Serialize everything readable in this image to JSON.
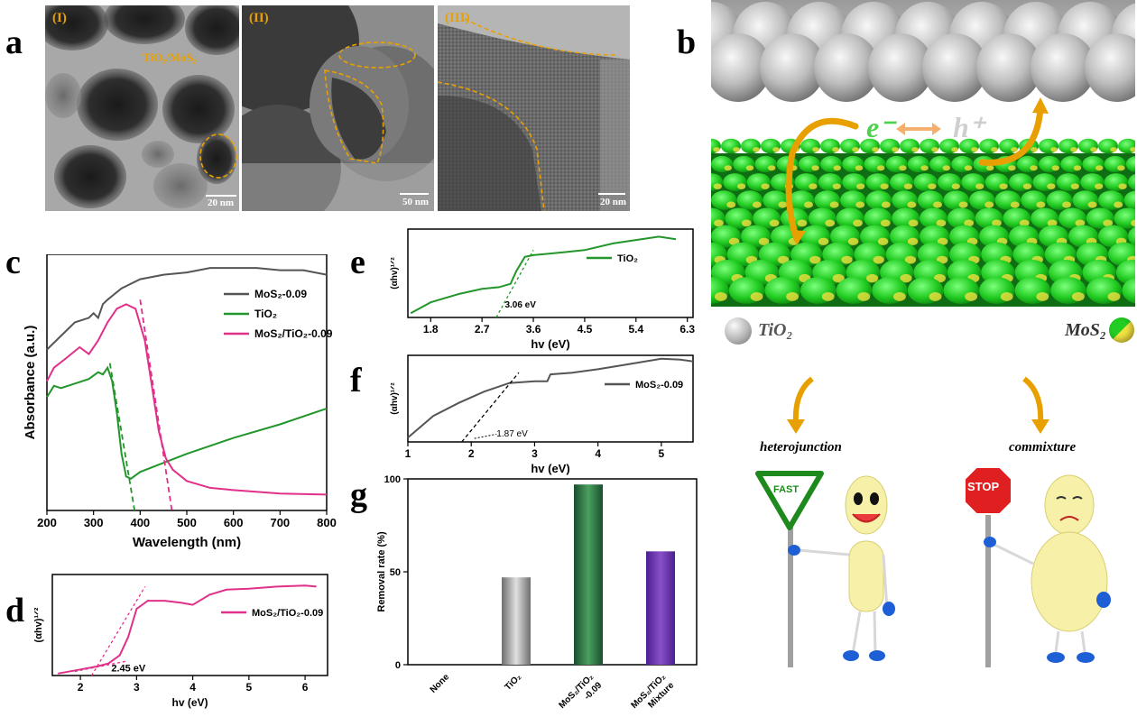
{
  "panel_letters": {
    "a": "a",
    "b": "b",
    "c": "c",
    "d": "d",
    "e": "e",
    "f": "f",
    "g": "g"
  },
  "tem_images": [
    {
      "label": "(I)",
      "annotation": "TiO₂/MoS₂",
      "scale": "20 nm"
    },
    {
      "label": "(II)",
      "scale": "50 nm"
    },
    {
      "label": "(III)",
      "scale": "20 nm"
    }
  ],
  "schematic": {
    "electron": "e⁻",
    "hole": "h⁺",
    "tio2_label": "TiO₂",
    "mos2_label": "MoS₂",
    "heterojunction": "heterojunction",
    "commixture": "commixture",
    "fast_sign": "FAST",
    "stop_sign": "STOP",
    "colors": {
      "tio2": "#b8b8b8",
      "mos2_green": "#22cc22",
      "mos2_yellow": "#f0e040",
      "arrow": "#e8a000"
    }
  },
  "chart_data": [
    {
      "id": "c",
      "type": "line",
      "xlabel": "Wavelength (nm)",
      "ylabel": "Absorbance (a.u.)",
      "xlim": [
        200,
        800
      ],
      "xticks": [
        "200",
        "300",
        "400",
        "500",
        "600",
        "700",
        "800"
      ],
      "series": [
        {
          "name": "MoS₂-0.09",
          "color": "#555555",
          "x": [
            200,
            230,
            260,
            290,
            300,
            310,
            320,
            330,
            360,
            400,
            450,
            500,
            550,
            600,
            650,
            700,
            750,
            800
          ],
          "y": [
            0.66,
            0.72,
            0.78,
            0.8,
            0.82,
            0.8,
            0.86,
            0.88,
            0.93,
            0.97,
            0.99,
            1.0,
            1.02,
            1.02,
            1.02,
            1.01,
            1.01,
            0.99
          ]
        },
        {
          "name": "TiO₂",
          "color": "#22962a",
          "x": [
            200,
            215,
            230,
            260,
            290,
            310,
            320,
            330,
            340,
            350,
            360,
            370,
            380,
            400,
            450,
            500,
            600,
            700,
            800
          ],
          "y": [
            0.45,
            0.5,
            0.49,
            0.51,
            0.53,
            0.56,
            0.55,
            0.58,
            0.52,
            0.38,
            0.2,
            0.1,
            0.09,
            0.12,
            0.16,
            0.2,
            0.27,
            0.33,
            0.4
          ]
        },
        {
          "name": "MoS₂/TiO₂-0.09",
          "color": "#e0308a",
          "x": [
            200,
            215,
            240,
            270,
            290,
            310,
            330,
            350,
            370,
            390,
            410,
            425,
            440,
            455,
            470,
            500,
            550,
            600,
            700,
            800
          ],
          "y": [
            0.52,
            0.58,
            0.62,
            0.67,
            0.64,
            0.7,
            0.78,
            0.84,
            0.86,
            0.84,
            0.7,
            0.5,
            0.3,
            0.18,
            0.13,
            0.08,
            0.05,
            0.04,
            0.025,
            0.02
          ]
        }
      ]
    },
    {
      "id": "d",
      "type": "line",
      "xlabel": "hv (eV)",
      "ylabel": "(αhv)¹ᐟ²",
      "xlim": [
        1.5,
        6.4
      ],
      "xticks": [
        "2",
        "3",
        "4",
        "5",
        "6"
      ],
      "annotation": "2.45 eV",
      "series": [
        {
          "name": "MoS₂/TiO₂-0.09",
          "color": "#e0308a",
          "x": [
            1.6,
            2.0,
            2.3,
            2.5,
            2.7,
            2.85,
            3.0,
            3.2,
            3.5,
            3.8,
            4.0,
            4.3,
            4.6,
            5.0,
            5.5,
            6.0,
            6.2
          ],
          "y": [
            0.02,
            0.06,
            0.09,
            0.12,
            0.2,
            0.38,
            0.66,
            0.74,
            0.74,
            0.72,
            0.7,
            0.8,
            0.85,
            0.86,
            0.88,
            0.89,
            0.88
          ]
        }
      ]
    },
    {
      "id": "e",
      "type": "line",
      "xlabel": "hv (eV)",
      "ylabel": "(αhv)¹ᐟ²",
      "xlim": [
        1.4,
        6.4
      ],
      "xticks": [
        "1.8",
        "2.7",
        "3.6",
        "4.5",
        "5.4",
        "6.3"
      ],
      "annotation": "3.06 eV",
      "series": [
        {
          "name": "TiO₂",
          "color": "#22962a",
          "x": [
            1.45,
            1.8,
            2.3,
            2.7,
            3.0,
            3.2,
            3.3,
            3.45,
            3.6,
            3.9,
            4.2,
            4.5,
            5.0,
            5.4,
            5.8,
            6.1
          ],
          "y": [
            0.05,
            0.18,
            0.28,
            0.34,
            0.36,
            0.4,
            0.55,
            0.72,
            0.74,
            0.76,
            0.78,
            0.8,
            0.88,
            0.92,
            0.96,
            0.93
          ]
        }
      ]
    },
    {
      "id": "f",
      "type": "line",
      "xlabel": "hv (eV)",
      "ylabel": "(αhv)¹ᐟ²",
      "xlim": [
        1.0,
        5.5
      ],
      "xticks": [
        "1",
        "2",
        "3",
        "4",
        "5"
      ],
      "annotation": "1.87 eV",
      "series": [
        {
          "name": "MoS₂-0.09",
          "color": "#555555",
          "x": [
            1.0,
            1.4,
            1.8,
            2.2,
            2.6,
            3.0,
            3.2,
            3.25,
            3.6,
            4.0,
            4.5,
            5.0,
            5.3,
            5.5
          ],
          "y": [
            0.05,
            0.3,
            0.45,
            0.58,
            0.68,
            0.7,
            0.7,
            0.78,
            0.8,
            0.84,
            0.9,
            0.96,
            0.95,
            0.93
          ]
        }
      ]
    },
    {
      "id": "g",
      "type": "bar",
      "ylabel": "Removal rate (%)",
      "ylim": [
        0,
        100
      ],
      "yticks": [
        "0",
        "50",
        "100"
      ],
      "categories": [
        "None",
        "TiO₂",
        "MoS₂/TiO₂ -0.09",
        "MoS₂/TiO₂ Mixture"
      ],
      "values": [
        0,
        47,
        97,
        61
      ]
    }
  ]
}
